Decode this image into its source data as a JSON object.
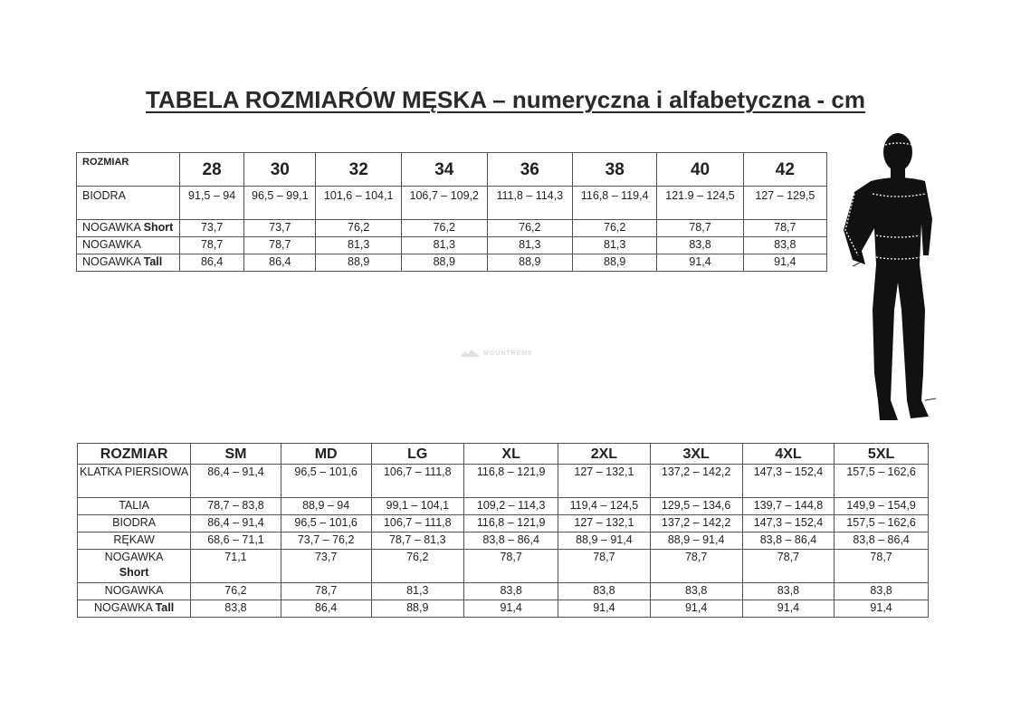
{
  "title": "TABELA ROZMIARÓW MĘSKA – numeryczna i alfabetyczna - cm",
  "watermark": "MOUNTREME",
  "numeric_table": {
    "header_label": "ROZMIAR",
    "sizes": [
      "28",
      "30",
      "32",
      "34",
      "36",
      "38",
      "40",
      "42"
    ],
    "rows": [
      {
        "label": "BIODRA",
        "label_bold": "",
        "values": [
          "91,5 – 94",
          "96,5 – 99,1",
          "101,6 – 104,1",
          "106,7 – 109,2",
          "111,8 – 114,3",
          "116,8 – 119,4",
          "121.9 – 124,5",
          "127 – 129,5"
        ]
      },
      {
        "label": "NOGAWKA ",
        "label_bold": "Short",
        "values": [
          "73,7",
          "73,7",
          "76,2",
          "76,2",
          "76,2",
          "76,2",
          "78,7",
          "78,7"
        ]
      },
      {
        "label": "NOGAWKA",
        "label_bold": "",
        "values": [
          "78,7",
          "78,7",
          "81,3",
          "81,3",
          "81,3",
          "81,3",
          "83,8",
          "83,8"
        ]
      },
      {
        "label": "NOGAWKA ",
        "label_bold": "Tall",
        "values": [
          "86,4",
          "86,4",
          "88,9",
          "88,9",
          "88,9",
          "88,9",
          "91,4",
          "91,4"
        ]
      }
    ]
  },
  "alpha_table": {
    "header_label": "ROZMIAR",
    "sizes": [
      "SM",
      "MD",
      "LG",
      "XL",
      "2XL",
      "3XL",
      "4XL",
      "5XL"
    ],
    "rows": [
      {
        "label": "KLATKA PIERSIOWA",
        "label_bold": "",
        "values": [
          "86,4 – 91,4",
          "96,5 – 101,6",
          "106,7 – 111,8",
          "116,8 – 121,9",
          "127 – 132,1",
          "137,2 – 142,2",
          "147,3 – 152,4",
          "157,5 – 162,6"
        ]
      },
      {
        "label": "TALIA",
        "label_bold": "",
        "values": [
          "78,7 – 83,8",
          "88,9 – 94",
          "99,1 – 104,1",
          "109,2 – 114,3",
          "119,4 – 124,5",
          "129,5 – 134,6",
          "139,7 – 144,8",
          "149,9 – 154,9"
        ]
      },
      {
        "label": "BIODRA",
        "label_bold": "",
        "values": [
          "86,4 – 91,4",
          "96,5 – 101,6",
          "106,7 – 111,8",
          "116,8 – 121,9",
          "127 – 132,1",
          "137,2 – 142,2",
          "147,3 – 152,4",
          "157,5 – 162,6"
        ]
      },
      {
        "label": "RĘKAW",
        "label_bold": "",
        "values": [
          "68,6 – 71,1",
          "73,7 – 76,2",
          "78,7 – 81,3",
          "83,8 – 86,4",
          "88,9 – 91,4",
          "88,9 – 91,4",
          "83,8 – 86,4",
          "83,8 – 86,4"
        ]
      },
      {
        "label": "NOGAWKA",
        "label_bold": "Short",
        "values": [
          "71,1",
          "73,7",
          "76,2",
          "78,7",
          "78,7",
          "78,7",
          "78,7",
          "78,7"
        ]
      },
      {
        "label": "NOGAWKA",
        "label_bold": "",
        "values": [
          "76,2",
          "78,7",
          "81,3",
          "83,8",
          "83,8",
          "83,8",
          "83,8",
          "83,8"
        ]
      },
      {
        "label": "NOGAWKA ",
        "label_bold": "Tall",
        "values": [
          "83,8",
          "86,4",
          "88,9",
          "91,4",
          "91,4",
          "91,4",
          "91,4",
          "91,4"
        ]
      }
    ]
  }
}
